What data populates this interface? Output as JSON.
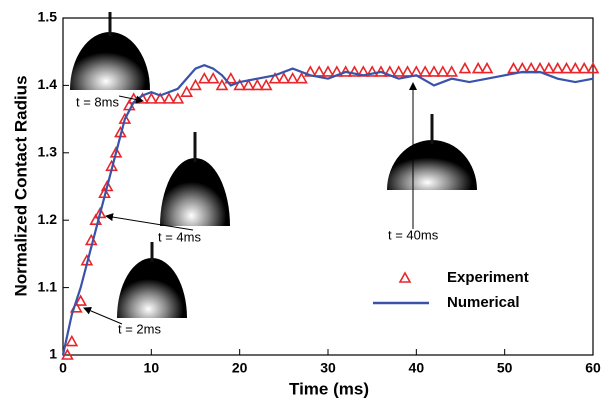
{
  "chart_data": {
    "type": "line",
    "xlabel": "Time (ms)",
    "ylabel": "Normalized Contact Radius",
    "xlim": [
      0,
      60
    ],
    "xticks": [
      0,
      10,
      20,
      30,
      40,
      50,
      60
    ],
    "ylim": [
      1,
      1.5
    ],
    "yticks": [
      1,
      1.1,
      1.2,
      1.3,
      1.4,
      1.5
    ],
    "legend": "lower right",
    "series": [
      {
        "name": "Experiment",
        "type": "scatter",
        "color": "#e8262a",
        "x": [
          0.5,
          1,
          1.5,
          2,
          2.7,
          3.2,
          3.7,
          4.2,
          4.7,
          5,
          5.5,
          6,
          6.5,
          7,
          7.5,
          8,
          9,
          10,
          11,
          12,
          13,
          14,
          15,
          16,
          17,
          18,
          19,
          20,
          21,
          22,
          23,
          24,
          25,
          26,
          27,
          28,
          29,
          30,
          31,
          32,
          33,
          34,
          35,
          36,
          37,
          38,
          39,
          40,
          41,
          42,
          43,
          44,
          45.5,
          47,
          48,
          51,
          52,
          53,
          54,
          55,
          56,
          57,
          58,
          59,
          60
        ],
        "values": [
          1.0,
          1.02,
          1.07,
          1.08,
          1.14,
          1.17,
          1.2,
          1.21,
          1.24,
          1.25,
          1.28,
          1.3,
          1.33,
          1.35,
          1.37,
          1.38,
          1.38,
          1.38,
          1.38,
          1.38,
          1.38,
          1.39,
          1.4,
          1.41,
          1.41,
          1.4,
          1.41,
          1.4,
          1.4,
          1.4,
          1.4,
          1.41,
          1.41,
          1.41,
          1.41,
          1.42,
          1.42,
          1.42,
          1.42,
          1.42,
          1.42,
          1.42,
          1.42,
          1.42,
          1.42,
          1.42,
          1.42,
          1.42,
          1.42,
          1.42,
          1.42,
          1.42,
          1.425,
          1.425,
          1.425,
          1.425,
          1.425,
          1.425,
          1.425,
          1.425,
          1.425,
          1.425,
          1.425,
          1.425,
          1.425
        ]
      },
      {
        "name": "Numerical",
        "type": "line",
        "color": "#3a52a8",
        "x": [
          0,
          1,
          2,
          3,
          4,
          5,
          6,
          7,
          8,
          9,
          10,
          11,
          12,
          13,
          14,
          15,
          16,
          17,
          18,
          19,
          20,
          22,
          24,
          26,
          28,
          30,
          32,
          34,
          36,
          38,
          40,
          42,
          44,
          46,
          48,
          50,
          52,
          54,
          56,
          58,
          60
        ],
        "values": [
          1.0,
          1.06,
          1.1,
          1.15,
          1.2,
          1.25,
          1.3,
          1.35,
          1.375,
          1.385,
          1.39,
          1.385,
          1.39,
          1.395,
          1.41,
          1.425,
          1.43,
          1.425,
          1.415,
          1.4,
          1.405,
          1.41,
          1.415,
          1.425,
          1.415,
          1.41,
          1.42,
          1.415,
          1.42,
          1.41,
          1.415,
          1.4,
          1.41,
          1.405,
          1.41,
          1.415,
          1.42,
          1.42,
          1.41,
          1.405,
          1.41
        ]
      }
    ],
    "annotations": [
      "t = 8ms",
      "t = 4ms",
      "t = 2ms",
      "t = 40ms"
    ]
  }
}
